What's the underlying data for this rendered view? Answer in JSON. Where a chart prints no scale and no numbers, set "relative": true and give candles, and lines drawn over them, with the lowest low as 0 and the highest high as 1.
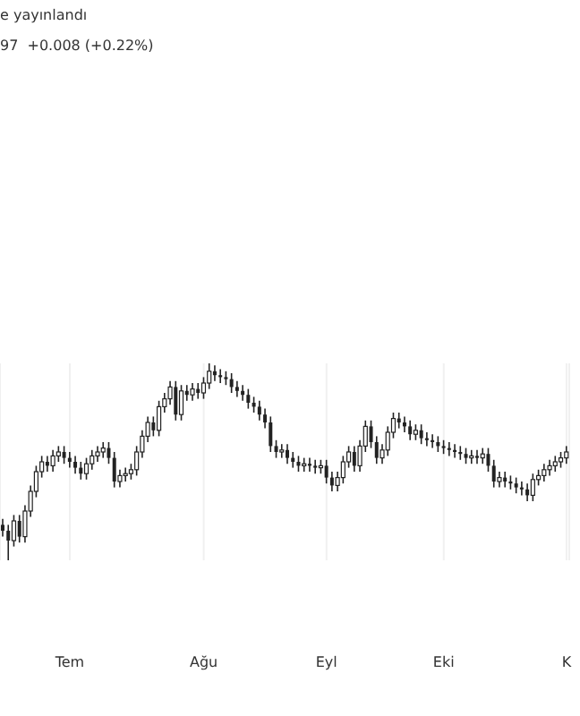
{
  "chart_data": {
    "type": "candlestick",
    "relative": true,
    "grid": "x",
    "color": "#222222",
    "annotations": [
      "e yayınlandı",
      "97  +0.008 (+0.22%)"
    ],
    "categories": [
      null,
      null,
      null,
      null,
      null,
      null,
      null,
      null,
      null,
      null,
      null,
      null,
      "Tem",
      null,
      null,
      null,
      null,
      null,
      null,
      null,
      null,
      null,
      null,
      null,
      null,
      null,
      null,
      null,
      null,
      null,
      null,
      null,
      null,
      null,
      null,
      null,
      "Ağu",
      null,
      null,
      null,
      null,
      null,
      null,
      null,
      null,
      null,
      null,
      null,
      null,
      null,
      null,
      null,
      null,
      null,
      null,
      null,
      null,
      null,
      "Eyl",
      null,
      null,
      null,
      null,
      null,
      null,
      null,
      null,
      null,
      null,
      null,
      null,
      null,
      null,
      null,
      null,
      null,
      null,
      null,
      null,
      "Eki",
      null,
      null,
      null,
      null,
      null,
      null,
      null,
      null,
      null,
      null,
      null,
      null,
      null,
      null,
      null,
      null,
      null,
      null,
      null,
      null,
      null,
      "K"
    ],
    "ohlc": [
      [
        0.18,
        0.21,
        0.12,
        0.15
      ],
      [
        0.15,
        0.18,
        0.0,
        0.1
      ],
      [
        0.1,
        0.23,
        0.07,
        0.2
      ],
      [
        0.2,
        0.23,
        0.09,
        0.12
      ],
      [
        0.12,
        0.28,
        0.09,
        0.25
      ],
      [
        0.25,
        0.38,
        0.22,
        0.35
      ],
      [
        0.35,
        0.48,
        0.32,
        0.45
      ],
      [
        0.45,
        0.53,
        0.42,
        0.5
      ],
      [
        0.5,
        0.53,
        0.45,
        0.48
      ],
      [
        0.48,
        0.56,
        0.45,
        0.53
      ],
      [
        0.53,
        0.58,
        0.5,
        0.55
      ],
      [
        0.55,
        0.58,
        0.49,
        0.52
      ],
      [
        0.52,
        0.55,
        0.47,
        0.5
      ],
      [
        0.5,
        0.53,
        0.44,
        0.47
      ],
      [
        0.47,
        0.5,
        0.41,
        0.44
      ],
      [
        0.44,
        0.52,
        0.41,
        0.49
      ],
      [
        0.49,
        0.56,
        0.46,
        0.53
      ],
      [
        0.53,
        0.58,
        0.5,
        0.55
      ],
      [
        0.55,
        0.6,
        0.52,
        0.57
      ],
      [
        0.57,
        0.6,
        0.49,
        0.52
      ],
      [
        0.52,
        0.55,
        0.37,
        0.4
      ],
      [
        0.4,
        0.46,
        0.37,
        0.43
      ],
      [
        0.43,
        0.47,
        0.4,
        0.44
      ],
      [
        0.44,
        0.49,
        0.41,
        0.46
      ],
      [
        0.46,
        0.58,
        0.43,
        0.55
      ],
      [
        0.55,
        0.66,
        0.52,
        0.63
      ],
      [
        0.63,
        0.73,
        0.6,
        0.7
      ],
      [
        0.7,
        0.73,
        0.63,
        0.66
      ],
      [
        0.66,
        0.81,
        0.63,
        0.78
      ],
      [
        0.78,
        0.85,
        0.75,
        0.82
      ],
      [
        0.82,
        0.91,
        0.79,
        0.88
      ],
      [
        0.88,
        0.91,
        0.71,
        0.74
      ],
      [
        0.74,
        0.89,
        0.71,
        0.86
      ],
      [
        0.86,
        0.89,
        0.81,
        0.84
      ],
      [
        0.84,
        0.9,
        0.81,
        0.87
      ],
      [
        0.87,
        0.9,
        0.82,
        0.85
      ],
      [
        0.85,
        0.93,
        0.82,
        0.9
      ],
      [
        0.9,
        1.0,
        0.87,
        0.96
      ],
      [
        0.96,
        0.99,
        0.91,
        0.94
      ],
      [
        0.94,
        0.97,
        0.9,
        0.93
      ],
      [
        0.93,
        0.96,
        0.89,
        0.92
      ],
      [
        0.92,
        0.95,
        0.85,
        0.88
      ],
      [
        0.88,
        0.91,
        0.83,
        0.86
      ],
      [
        0.86,
        0.89,
        0.81,
        0.84
      ],
      [
        0.84,
        0.87,
        0.77,
        0.8
      ],
      [
        0.8,
        0.83,
        0.75,
        0.78
      ],
      [
        0.78,
        0.81,
        0.71,
        0.74
      ],
      [
        0.74,
        0.77,
        0.67,
        0.7
      ],
      [
        0.7,
        0.73,
        0.55,
        0.58
      ],
      [
        0.58,
        0.61,
        0.52,
        0.55
      ],
      [
        0.55,
        0.59,
        0.52,
        0.56
      ],
      [
        0.56,
        0.59,
        0.49,
        0.52
      ],
      [
        0.52,
        0.55,
        0.47,
        0.5
      ],
      [
        0.5,
        0.53,
        0.45,
        0.48
      ],
      [
        0.48,
        0.52,
        0.45,
        0.49
      ],
      [
        0.49,
        0.52,
        0.45,
        0.48
      ],
      [
        0.48,
        0.51,
        0.44,
        0.47
      ],
      [
        0.47,
        0.51,
        0.44,
        0.48
      ],
      [
        0.48,
        0.51,
        0.39,
        0.42
      ],
      [
        0.42,
        0.45,
        0.35,
        0.38
      ],
      [
        0.38,
        0.45,
        0.35,
        0.42
      ],
      [
        0.42,
        0.53,
        0.39,
        0.5
      ],
      [
        0.5,
        0.58,
        0.47,
        0.55
      ],
      [
        0.55,
        0.58,
        0.45,
        0.48
      ],
      [
        0.48,
        0.61,
        0.45,
        0.58
      ],
      [
        0.58,
        0.71,
        0.55,
        0.68
      ],
      [
        0.68,
        0.71,
        0.57,
        0.6
      ],
      [
        0.6,
        0.63,
        0.49,
        0.52
      ],
      [
        0.52,
        0.59,
        0.49,
        0.56
      ],
      [
        0.56,
        0.68,
        0.53,
        0.65
      ],
      [
        0.65,
        0.75,
        0.62,
        0.72
      ],
      [
        0.72,
        0.75,
        0.67,
        0.7
      ],
      [
        0.7,
        0.73,
        0.65,
        0.68
      ],
      [
        0.68,
        0.71,
        0.61,
        0.64
      ],
      [
        0.64,
        0.69,
        0.61,
        0.66
      ],
      [
        0.66,
        0.69,
        0.59,
        0.62
      ],
      [
        0.62,
        0.65,
        0.58,
        0.61
      ],
      [
        0.61,
        0.64,
        0.57,
        0.6
      ],
      [
        0.6,
        0.63,
        0.55,
        0.58
      ],
      [
        0.58,
        0.61,
        0.54,
        0.57
      ],
      [
        0.57,
        0.6,
        0.53,
        0.56
      ],
      [
        0.56,
        0.59,
        0.52,
        0.55
      ],
      [
        0.55,
        0.58,
        0.51,
        0.54
      ],
      [
        0.54,
        0.57,
        0.49,
        0.52
      ],
      [
        0.52,
        0.56,
        0.49,
        0.53
      ],
      [
        0.53,
        0.56,
        0.49,
        0.52
      ],
      [
        0.52,
        0.57,
        0.49,
        0.54
      ],
      [
        0.54,
        0.57,
        0.45,
        0.48
      ],
      [
        0.48,
        0.51,
        0.37,
        0.4
      ],
      [
        0.4,
        0.45,
        0.37,
        0.42
      ],
      [
        0.42,
        0.45,
        0.37,
        0.4
      ],
      [
        0.4,
        0.43,
        0.36,
        0.39
      ],
      [
        0.39,
        0.42,
        0.34,
        0.37
      ],
      [
        0.37,
        0.4,
        0.33,
        0.36
      ],
      [
        0.36,
        0.39,
        0.3,
        0.33
      ],
      [
        0.33,
        0.44,
        0.3,
        0.41
      ],
      [
        0.41,
        0.46,
        0.38,
        0.43
      ],
      [
        0.43,
        0.49,
        0.4,
        0.46
      ],
      [
        0.46,
        0.51,
        0.43,
        0.48
      ],
      [
        0.48,
        0.53,
        0.45,
        0.5
      ],
      [
        0.5,
        0.55,
        0.47,
        0.52
      ],
      [
        0.52,
        0.58,
        0.49,
        0.55
      ]
    ]
  }
}
